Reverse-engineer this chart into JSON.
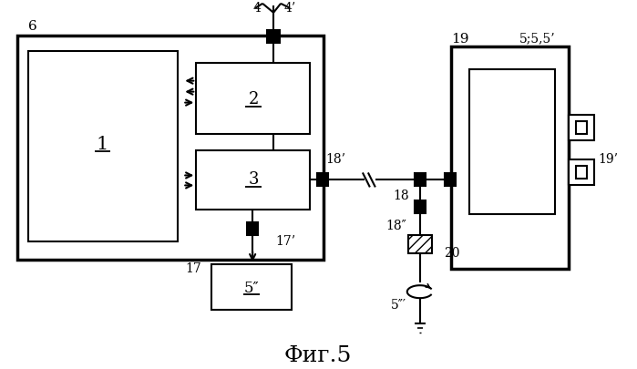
{
  "title": "Фиг.5",
  "bg": "#ffffff",
  "fw": 6.99,
  "fh": 4.05,
  "dpi": 100
}
